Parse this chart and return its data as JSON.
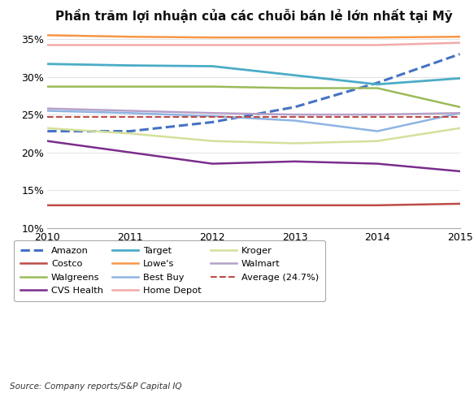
{
  "title": "Phần trăm lợi nhuận của các chuỗi bán lẻ lớn nhất tại Mỹ",
  "source": "Source: Company reports/S&P Capital IQ",
  "years": [
    2010,
    2011,
    2012,
    2013,
    2014,
    2015
  ],
  "ylim": [
    10,
    36
  ],
  "yticks": [
    10,
    15,
    20,
    25,
    30,
    35
  ],
  "series": {
    "Amazon": {
      "values": [
        22.8,
        22.8,
        24.0,
        26.0,
        29.2,
        33.0
      ],
      "color": "#4472C4",
      "linestyle": "--",
      "linewidth": 2.2
    },
    "Costco": {
      "values": [
        13.0,
        13.0,
        13.0,
        13.0,
        13.0,
        13.2
      ],
      "color": "#BE4B48",
      "linestyle": "-",
      "linewidth": 1.8
    },
    "Walgreens": {
      "values": [
        28.7,
        28.7,
        28.7,
        28.5,
        28.5,
        26.0
      ],
      "color": "#9BBB59",
      "linestyle": "-",
      "linewidth": 1.8
    },
    "CVS Health": {
      "values": [
        21.5,
        20.0,
        18.5,
        18.8,
        18.5,
        17.5
      ],
      "color": "#7B2D8B",
      "linestyle": "-",
      "linewidth": 1.8
    },
    "Target": {
      "values": [
        31.7,
        31.5,
        31.4,
        30.2,
        29.0,
        29.8
      ],
      "color": "#4BACC6",
      "linestyle": "-",
      "linewidth": 2.0
    },
    "Lowe's": {
      "values": [
        35.5,
        35.3,
        35.2,
        35.2,
        35.2,
        35.3
      ],
      "color": "#F79646",
      "linestyle": "-",
      "linewidth": 1.8
    },
    "Best Buy": {
      "values": [
        25.5,
        25.2,
        24.8,
        24.2,
        22.8,
        25.2
      ],
      "color": "#8EB4E3",
      "linestyle": "-",
      "linewidth": 1.8
    },
    "Home Depot": {
      "values": [
        34.2,
        34.2,
        34.2,
        34.2,
        34.2,
        34.5
      ],
      "color": "#F2ABAB",
      "linestyle": "-",
      "linewidth": 1.8
    },
    "Kroger": {
      "values": [
        23.2,
        22.5,
        21.5,
        21.2,
        21.5,
        23.2
      ],
      "color": "#D4E09B",
      "linestyle": "-",
      "linewidth": 1.8
    },
    "Walmart": {
      "values": [
        25.8,
        25.5,
        25.2,
        25.0,
        25.0,
        25.2
      ],
      "color": "#B5A0C8",
      "linestyle": "-",
      "linewidth": 1.8
    },
    "Average": {
      "values": [
        24.7,
        24.7,
        24.7,
        24.7,
        24.7,
        24.7
      ],
      "color": "#BE4B48",
      "linestyle": "--",
      "linewidth": 1.5
    }
  },
  "legend_order": [
    [
      "Amazon",
      "Amazon"
    ],
    [
      "Costco",
      "Costco"
    ],
    [
      "Walgreens",
      "Walgreens"
    ],
    [
      "CVS Health",
      "CVS Health"
    ],
    [
      "Target",
      "Target"
    ],
    [
      "Lowe's",
      "Lowe's"
    ],
    [
      "Best Buy",
      "Best Buy"
    ],
    [
      "Home Depot",
      "Home Depot"
    ],
    [
      "Kroger",
      "Kroger"
    ],
    [
      "Walmart",
      "Walmart"
    ],
    [
      "Average",
      "Average (24.7%)"
    ]
  ],
  "background_color": "#FFFFFF",
  "grid_color": "#DDDDDD"
}
